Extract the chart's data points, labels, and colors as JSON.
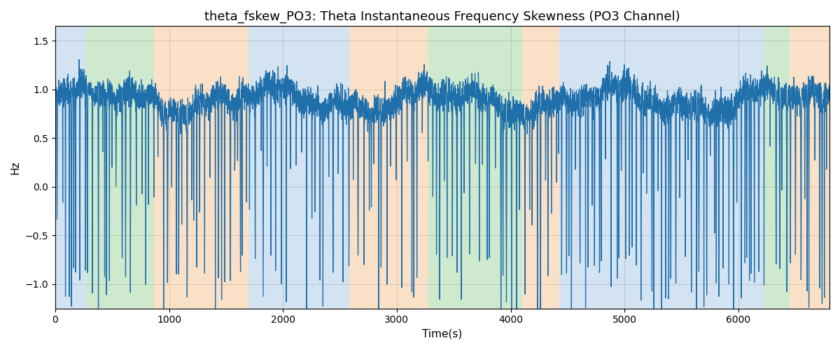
{
  "title": "theta_fskew_PO3: Theta Instantaneous Frequency Skewness (PO3 Channel)",
  "xlabel": "Time(s)",
  "ylabel": "Hz",
  "xlim": [
    0,
    6800
  ],
  "ylim": [
    -1.25,
    1.65
  ],
  "line_color": "#1f6fab",
  "line_width": 0.9,
  "grid_color": "#bbbbbb",
  "background_regions": [
    {
      "start": 0,
      "end": 270,
      "color": "#aac8e4",
      "alpha": 0.5
    },
    {
      "start": 270,
      "end": 870,
      "color": "#a0d4a0",
      "alpha": 0.5
    },
    {
      "start": 870,
      "end": 1700,
      "color": "#f5c89a",
      "alpha": 0.55
    },
    {
      "start": 1700,
      "end": 2580,
      "color": "#aac8e4",
      "alpha": 0.5
    },
    {
      "start": 2580,
      "end": 3280,
      "color": "#f5c89a",
      "alpha": 0.55
    },
    {
      "start": 3280,
      "end": 4100,
      "color": "#a0d4a0",
      "alpha": 0.5
    },
    {
      "start": 4100,
      "end": 4430,
      "color": "#f5c89a",
      "alpha": 0.55
    },
    {
      "start": 4430,
      "end": 6230,
      "color": "#aac8e4",
      "alpha": 0.5
    },
    {
      "start": 6230,
      "end": 6450,
      "color": "#a0d4a0",
      "alpha": 0.5
    },
    {
      "start": 6450,
      "end": 6800,
      "color": "#f5c89a",
      "alpha": 0.55
    }
  ],
  "seed": 42,
  "n_points": 6800,
  "title_fontsize": 13,
  "label_fontsize": 11,
  "tick_xticks": [
    0,
    1000,
    2000,
    3000,
    4000,
    5000,
    6000
  ],
  "tick_yticks": [
    -1.0,
    -0.5,
    0.0,
    0.5,
    1.0,
    1.5
  ]
}
